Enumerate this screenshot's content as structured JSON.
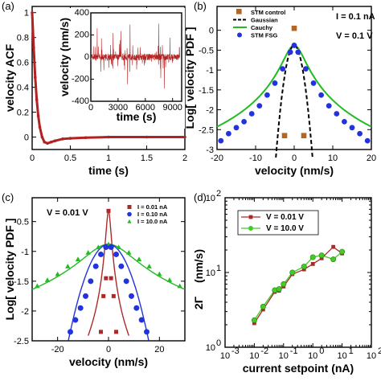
{
  "colors": {
    "red": "#b22222",
    "brown": "#b5651d",
    "green": "#22bb22",
    "blue": "#2233dd",
    "dark_red": "#aa2a2a",
    "lime": "#44cc22"
  },
  "chart_data": [
    {
      "panel": "(a)",
      "type": "line",
      "xlabel": "time (s)",
      "ylabel": "velocity ACF",
      "xlim": [
        0,
        2
      ],
      "ylim": [
        -0.1,
        1.05
      ],
      "xticks": [
        0,
        0.5,
        1,
        1.5,
        2
      ],
      "xtick_labels": [
        "0",
        "0.5",
        "1",
        "1.5",
        "2"
      ],
      "yticks": [
        0,
        0.2,
        0.4,
        0.6,
        0.8,
        1
      ],
      "ytick_labels": [
        "0",
        "0.2",
        "0.4",
        "0.6",
        "0.8",
        "1"
      ],
      "series": [
        {
          "x": [
            0,
            0.02,
            0.04,
            0.06,
            0.08,
            0.1,
            0.13,
            0.16,
            0.2,
            0.25,
            0.3,
            0.4,
            0.5,
            0.7,
            1.0,
            1.5,
            2.0
          ],
          "y": [
            1,
            0.72,
            0.48,
            0.3,
            0.17,
            0.08,
            0.0,
            -0.04,
            -0.05,
            -0.04,
            -0.03,
            -0.015,
            -0.01,
            -0.005,
            0,
            0,
            0
          ]
        }
      ],
      "inset": {
        "type": "line",
        "xlabel": "time (s)",
        "ylabel": "velocity (nm/s)",
        "xlim": [
          0,
          10000
        ],
        "ylim": [
          -400,
          400
        ],
        "xticks": [
          0,
          3000,
          6000,
          9000
        ],
        "xtick_labels": [
          "0",
          "3000",
          "6000",
          "9000"
        ],
        "yticks": [
          -400,
          -200,
          0,
          200,
          400
        ],
        "ytick_labels": [
          "-400",
          "-200",
          "0",
          "200",
          "400"
        ]
      }
    },
    {
      "panel": "(b)",
      "type": "scatter",
      "xlabel": "velocity (nm/s)",
      "ylabel": "Log[ velocity PDF ]",
      "xlim": [
        -20,
        20
      ],
      "ylim": [
        -3,
        0.6
      ],
      "xticks": [
        -20,
        -10,
        0,
        10,
        20
      ],
      "xtick_labels": [
        "-20",
        "-10",
        "0",
        "10",
        "20"
      ],
      "yticks": [
        -3,
        -2.5,
        -2,
        -1.5,
        -1,
        -0.5,
        0
      ],
      "ytick_labels": [
        "-3",
        "-2.5",
        "-2",
        "-1.5",
        "-1",
        "-0.5",
        "0"
      ],
      "legend": [
        "STM control",
        "Gaussian",
        "Cauchy",
        "STM FSG"
      ],
      "annotations": [
        "I = 0.1 nA",
        "V = 0.1 V"
      ],
      "series": [
        {
          "name": "STM control",
          "x": [
            -2.5,
            0,
            2.5
          ],
          "y": [
            -2.65,
            0.05,
            -2.65
          ]
        },
        {
          "name": "Gaussian",
          "x": [
            -4.5,
            -3.5,
            -2.5,
            -1.5,
            -0.5,
            0,
            0.5,
            1.5,
            2.5,
            3.5,
            4.5
          ],
          "y": [
            -3,
            -2.2,
            -1.5,
            -0.9,
            -0.45,
            -0.38,
            -0.45,
            -0.9,
            -1.5,
            -2.2,
            -3
          ]
        },
        {
          "name": "Cauchy",
          "x": [
            -20,
            -16,
            -12,
            -8,
            -6,
            -4,
            -2,
            0,
            2,
            4,
            6,
            8,
            12,
            16,
            20
          ],
          "y": [
            -2.6,
            -2.35,
            -2.05,
            -1.6,
            -1.32,
            -0.98,
            -0.6,
            -0.38,
            -0.6,
            -0.98,
            -1.32,
            -1.6,
            -2.05,
            -2.35,
            -2.6
          ]
        },
        {
          "name": "STM FSG",
          "x": [
            -19,
            -17,
            -15,
            -13,
            -11,
            -9,
            -7,
            -5,
            -3,
            -1,
            0,
            1,
            3,
            5,
            7,
            9,
            11,
            13,
            15,
            17,
            19
          ],
          "y": [
            -2.78,
            -2.6,
            -2.45,
            -2.3,
            -2.1,
            -1.9,
            -1.63,
            -1.33,
            -0.97,
            -0.55,
            -0.38,
            -0.55,
            -0.97,
            -1.33,
            -1.63,
            -1.9,
            -2.1,
            -2.3,
            -2.45,
            -2.6,
            -2.78
          ]
        }
      ]
    },
    {
      "panel": "(c)",
      "type": "scatter",
      "xlabel": "velocity (nm/s)",
      "ylabel": "Log[ velocity PDF ]",
      "xlim": [
        -30,
        30
      ],
      "ylim": [
        -2.5,
        -0.1
      ],
      "xticks": [
        -20,
        0,
        20
      ],
      "xtick_labels": [
        "-20",
        "0",
        "20"
      ],
      "yticks": [
        -2.5,
        -2,
        -1.5,
        -1,
        -0.5
      ],
      "ytick_labels": [
        "-2.5",
        "-2",
        "-1.5",
        "-1",
        "-0.5"
      ],
      "legend": [
        "I = 0.01 nA",
        "I = 0.10 nA",
        "I = 10.0 nA"
      ],
      "annotations": [
        "V = 0.01 V"
      ],
      "series": [
        {
          "name": "I = 0.01 nA",
          "x": [
            -3,
            -2,
            -1,
            0,
            1,
            2,
            3
          ],
          "y": [
            -2.35,
            -1.75,
            -1.45,
            -0.32,
            -1.45,
            -1.75,
            -2.35
          ]
        },
        {
          "name": "I = 0.10 nA",
          "x": [
            -15,
            -13,
            -11,
            -9,
            -7,
            -5,
            -3,
            -1,
            1,
            3,
            5,
            7,
            9,
            11,
            13,
            15
          ],
          "y": [
            -2.35,
            -2.15,
            -1.95,
            -1.75,
            -1.5,
            -1.25,
            -1.05,
            -0.93,
            -0.93,
            -1.05,
            -1.25,
            -1.5,
            -1.75,
            -1.95,
            -2.15,
            -2.35
          ]
        },
        {
          "name": "I = 10.0 nA",
          "x": [
            -28,
            -24,
            -20,
            -16,
            -12,
            -8,
            -4,
            0,
            4,
            8,
            12,
            16,
            20,
            24,
            28
          ],
          "y": [
            -1.58,
            -1.48,
            -1.38,
            -1.25,
            -1.13,
            -1.02,
            -0.93,
            -0.88,
            -0.93,
            -1.02,
            -1.13,
            -1.25,
            -1.38,
            -1.48,
            -1.58
          ]
        }
      ]
    },
    {
      "panel": "(d)",
      "type": "line",
      "xlabel": "current setpoint (nA)",
      "ylabel": "2Γ",
      "ylabel_unit": "(nm/s)",
      "x_scale": "log",
      "y_scale": "log",
      "xlim": [
        0.001,
        100
      ],
      "ylim": [
        1,
        100
      ],
      "xticks": [
        0.001,
        0.01,
        0.1,
        1,
        10,
        100
      ],
      "xtick_labels": [
        "10",
        "10",
        "10",
        "10",
        "10",
        "10"
      ],
      "xtick_exps": [
        "-3",
        "-2",
        "-1",
        "0",
        "1",
        "2"
      ],
      "yticks": [
        1,
        10,
        100
      ],
      "ytick_labels": [
        "10",
        "10",
        "10"
      ],
      "ytick_exps": [
        "0",
        "1",
        "2"
      ],
      "legend": [
        "V = 0.01 V",
        "V = 10.0 V"
      ],
      "series": [
        {
          "name": "V = 0.01 V",
          "x": [
            0.01,
            0.02,
            0.05,
            0.07,
            0.1,
            0.2,
            0.5,
            1,
            2,
            5,
            10
          ],
          "y": [
            2.1,
            3.2,
            5.5,
            5.7,
            6.5,
            9.5,
            11,
            13,
            15.5,
            22,
            18
          ]
        },
        {
          "name": "V = 10.0 V",
          "x": [
            0.01,
            0.02,
            0.05,
            0.07,
            0.1,
            0.2,
            0.5,
            1,
            2,
            5,
            10
          ],
          "y": [
            2.3,
            3.5,
            5.8,
            6,
            7,
            10,
            12,
            16,
            17,
            15,
            19
          ]
        }
      ]
    }
  ]
}
